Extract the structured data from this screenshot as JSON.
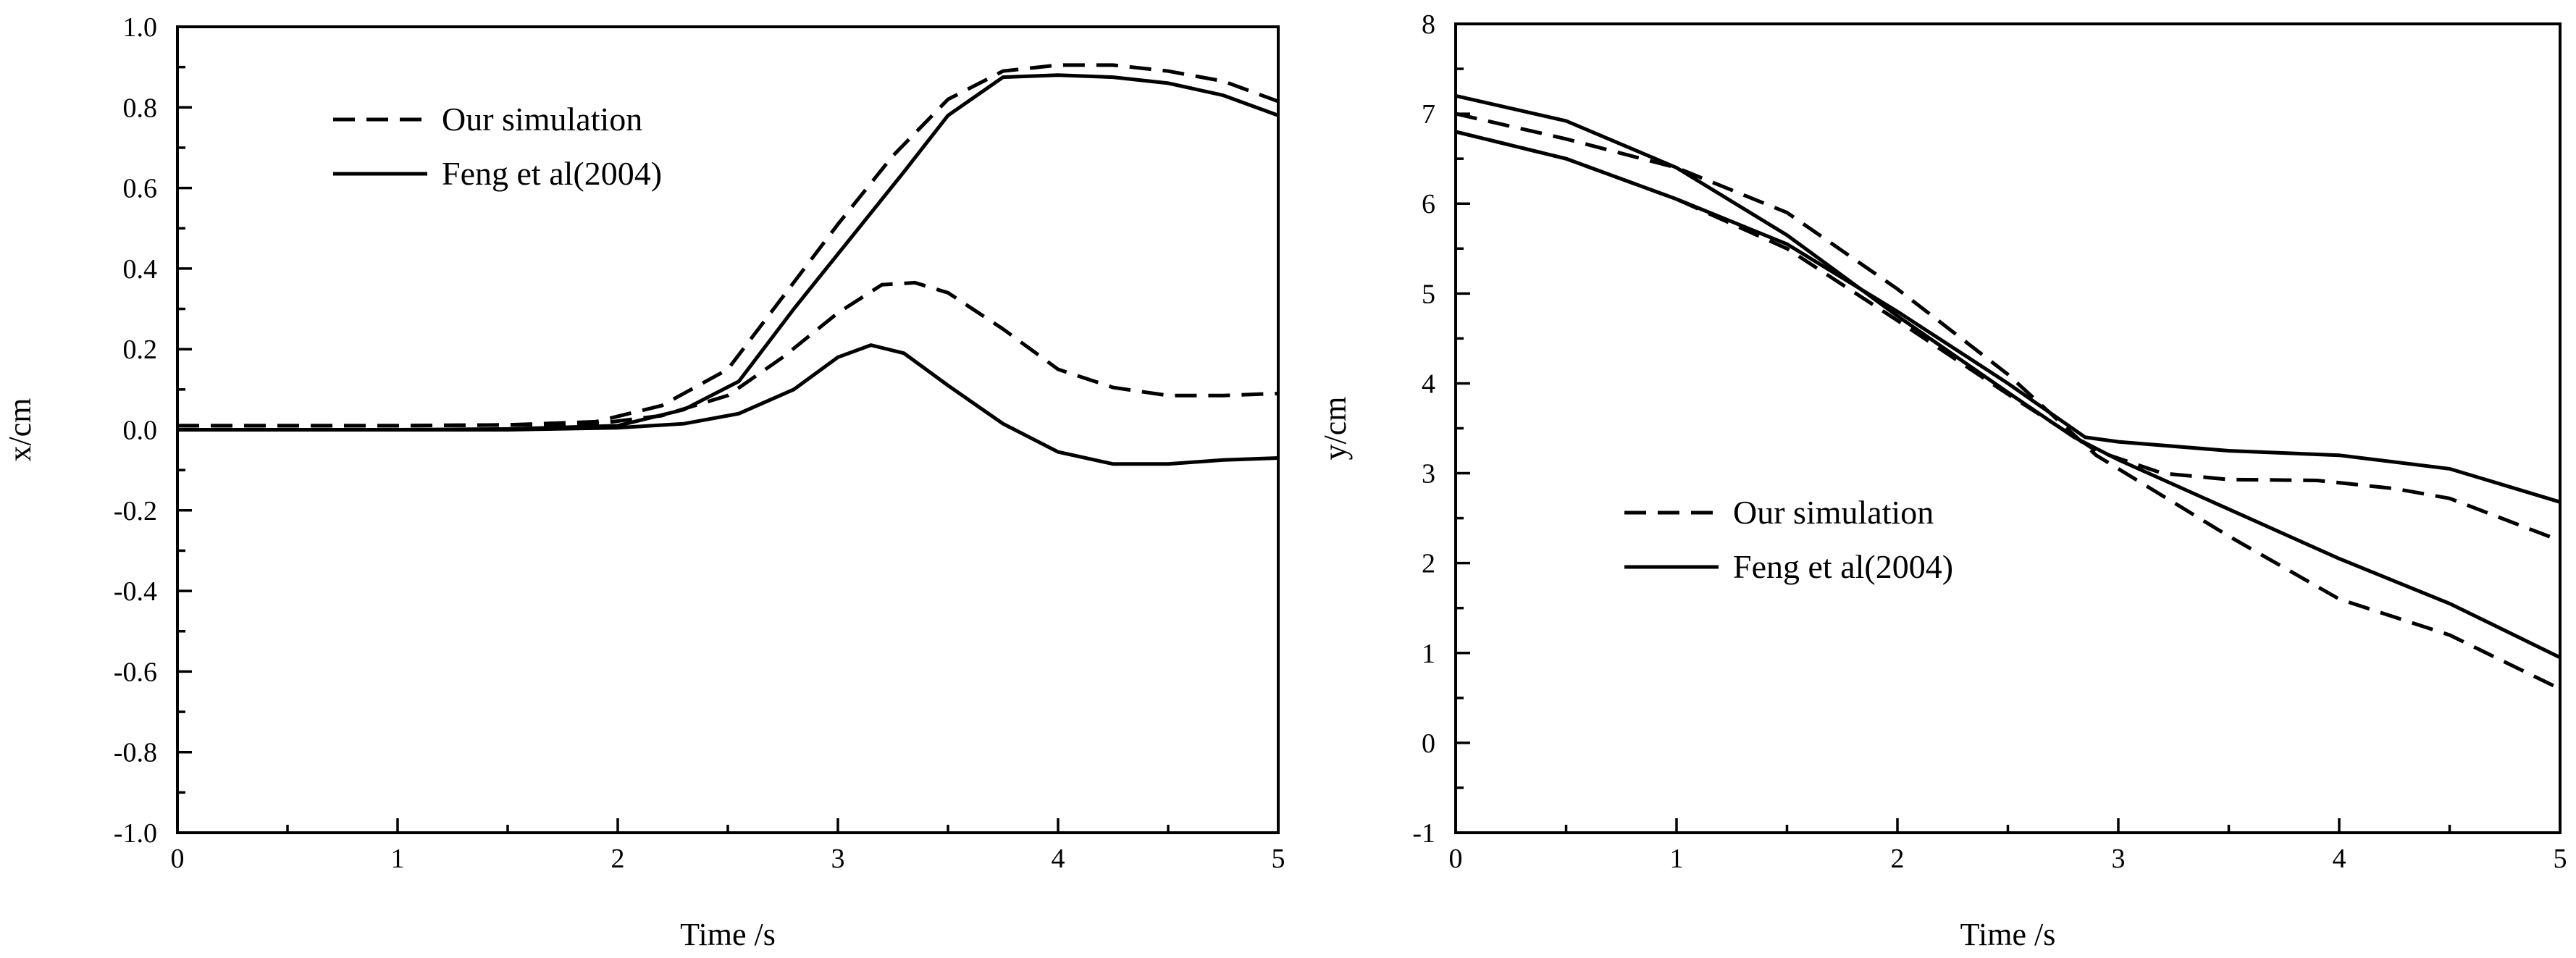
{
  "chart_data": [
    {
      "type": "line",
      "xlabel": "Time  /s",
      "ylabel": "x/cm",
      "xlim": [
        0,
        5
      ],
      "ylim": [
        -1.0,
        1.0
      ],
      "x_ticks": [
        "0",
        "1",
        "2",
        "3",
        "4",
        "5"
      ],
      "y_ticks": [
        "-1.0",
        "-0.8",
        "-0.6",
        "-0.4",
        "-0.2",
        "0.0",
        "0.2",
        "0.4",
        "0.6",
        "0.8",
        "1.0"
      ],
      "grid": false,
      "legend": "upper-left",
      "legend_items": [
        {
          "label": "Our simulation",
          "style": "dashed"
        },
        {
          "label": "Feng et al(2004)",
          "style": "solid"
        }
      ],
      "series": [
        {
          "style": "dashed",
          "legend": "Our simulation",
          "points": [
            [
              0,
              0.01
            ],
            [
              1.0,
              0.01
            ],
            [
              1.5,
              0.012
            ],
            [
              1.9,
              0.02
            ],
            [
              2.2,
              0.06
            ],
            [
              2.5,
              0.15
            ],
            [
              2.75,
              0.33
            ],
            [
              3.0,
              0.51
            ],
            [
              3.25,
              0.68
            ],
            [
              3.5,
              0.82
            ],
            [
              3.75,
              0.89
            ],
            [
              4.0,
              0.905
            ],
            [
              4.25,
              0.905
            ],
            [
              4.5,
              0.89
            ],
            [
              4.75,
              0.865
            ],
            [
              5.0,
              0.815
            ]
          ]
        },
        {
          "style": "solid",
          "legend": "Feng et al(2004)",
          "points": [
            [
              0,
              0.0
            ],
            [
              1.0,
              0.0
            ],
            [
              1.5,
              0.002
            ],
            [
              2.0,
              0.01
            ],
            [
              2.3,
              0.05
            ],
            [
              2.55,
              0.12
            ],
            [
              2.8,
              0.3
            ],
            [
              3.05,
              0.47
            ],
            [
              3.3,
              0.64
            ],
            [
              3.5,
              0.78
            ],
            [
              3.75,
              0.875
            ],
            [
              4.0,
              0.88
            ],
            [
              4.25,
              0.875
            ],
            [
              4.5,
              0.86
            ],
            [
              4.75,
              0.83
            ],
            [
              5.0,
              0.78
            ]
          ]
        },
        {
          "style": "dashed",
          "legend": "Our simulation",
          "points": [
            [
              0,
              0.01
            ],
            [
              1.0,
              0.01
            ],
            [
              1.5,
              0.012
            ],
            [
              1.9,
              0.015
            ],
            [
              2.2,
              0.035
            ],
            [
              2.5,
              0.085
            ],
            [
              2.75,
              0.18
            ],
            [
              3.0,
              0.29
            ],
            [
              3.2,
              0.36
            ],
            [
              3.35,
              0.365
            ],
            [
              3.5,
              0.34
            ],
            [
              3.75,
              0.25
            ],
            [
              4.0,
              0.15
            ],
            [
              4.25,
              0.105
            ],
            [
              4.5,
              0.085
            ],
            [
              4.75,
              0.085
            ],
            [
              5.0,
              0.09
            ]
          ]
        },
        {
          "style": "solid",
          "legend": "Feng et al(2004)",
          "points": [
            [
              0,
              0.0
            ],
            [
              1.0,
              0.0
            ],
            [
              1.5,
              0.0
            ],
            [
              2.0,
              0.005
            ],
            [
              2.3,
              0.015
            ],
            [
              2.55,
              0.04
            ],
            [
              2.8,
              0.1
            ],
            [
              3.0,
              0.18
            ],
            [
              3.15,
              0.21
            ],
            [
              3.3,
              0.19
            ],
            [
              3.5,
              0.11
            ],
            [
              3.75,
              0.015
            ],
            [
              4.0,
              -0.055
            ],
            [
              4.25,
              -0.085
            ],
            [
              4.5,
              -0.085
            ],
            [
              4.75,
              -0.075
            ],
            [
              5.0,
              -0.07
            ]
          ]
        }
      ]
    },
    {
      "type": "line",
      "xlabel": "Time  /s",
      "ylabel": "y/cm",
      "xlim": [
        0,
        5
      ],
      "ylim": [
        -1,
        8
      ],
      "x_ticks": [
        "0",
        "1",
        "2",
        "3",
        "4",
        "5"
      ],
      "y_ticks": [
        "-1",
        "0",
        "1",
        "2",
        "3",
        "4",
        "5",
        "6",
        "7",
        "8"
      ],
      "grid": false,
      "legend": "lower-left",
      "legend_items": [
        {
          "label": "Our simulation",
          "style": "dashed"
        },
        {
          "label": "Feng et al(2004)",
          "style": "solid"
        }
      ],
      "series": [
        {
          "style": "dashed",
          "legend": "Our simulation",
          "points": [
            [
              0,
              7.0
            ],
            [
              0.5,
              6.72
            ],
            [
              1.0,
              6.4
            ],
            [
              1.5,
              5.9
            ],
            [
              2.0,
              5.05
            ],
            [
              2.5,
              4.1
            ],
            [
              2.9,
              3.2
            ],
            [
              3.0,
              3.05
            ],
            [
              3.5,
              2.3
            ],
            [
              4.0,
              1.6
            ],
            [
              4.5,
              1.2
            ],
            [
              5.0,
              0.6
            ]
          ]
        },
        {
          "style": "solid",
          "legend": "Feng et al(2004)",
          "points": [
            [
              0,
              7.2
            ],
            [
              0.5,
              6.92
            ],
            [
              1.0,
              6.4
            ],
            [
              1.5,
              5.65
            ],
            [
              2.0,
              4.75
            ],
            [
              2.5,
              3.9
            ],
            [
              2.8,
              3.4
            ],
            [
              3.0,
              3.15
            ],
            [
              3.5,
              2.6
            ],
            [
              4.0,
              2.05
            ],
            [
              4.5,
              1.55
            ],
            [
              5.0,
              0.95
            ]
          ]
        },
        {
          "style": "dashed",
          "legend": "Our simulation",
          "points": [
            [
              0,
              6.8
            ],
            [
              0.5,
              6.5
            ],
            [
              1.0,
              6.05
            ],
            [
              1.5,
              5.5
            ],
            [
              2.0,
              4.7
            ],
            [
              2.5,
              3.88
            ],
            [
              2.9,
              3.25
            ],
            [
              3.2,
              3.0
            ],
            [
              3.5,
              2.93
            ],
            [
              3.9,
              2.92
            ],
            [
              4.25,
              2.83
            ],
            [
              4.5,
              2.72
            ],
            [
              5.0,
              2.25
            ]
          ]
        },
        {
          "style": "solid",
          "legend": "Feng et al(2004)",
          "points": [
            [
              0,
              6.8
            ],
            [
              0.5,
              6.5
            ],
            [
              1.0,
              6.05
            ],
            [
              1.5,
              5.55
            ],
            [
              2.0,
              4.8
            ],
            [
              2.5,
              4.0
            ],
            [
              2.85,
              3.4
            ],
            [
              3.0,
              3.35
            ],
            [
              3.5,
              3.25
            ],
            [
              4.0,
              3.2
            ],
            [
              4.5,
              3.05
            ],
            [
              5.0,
              2.68
            ]
          ]
        }
      ]
    }
  ]
}
